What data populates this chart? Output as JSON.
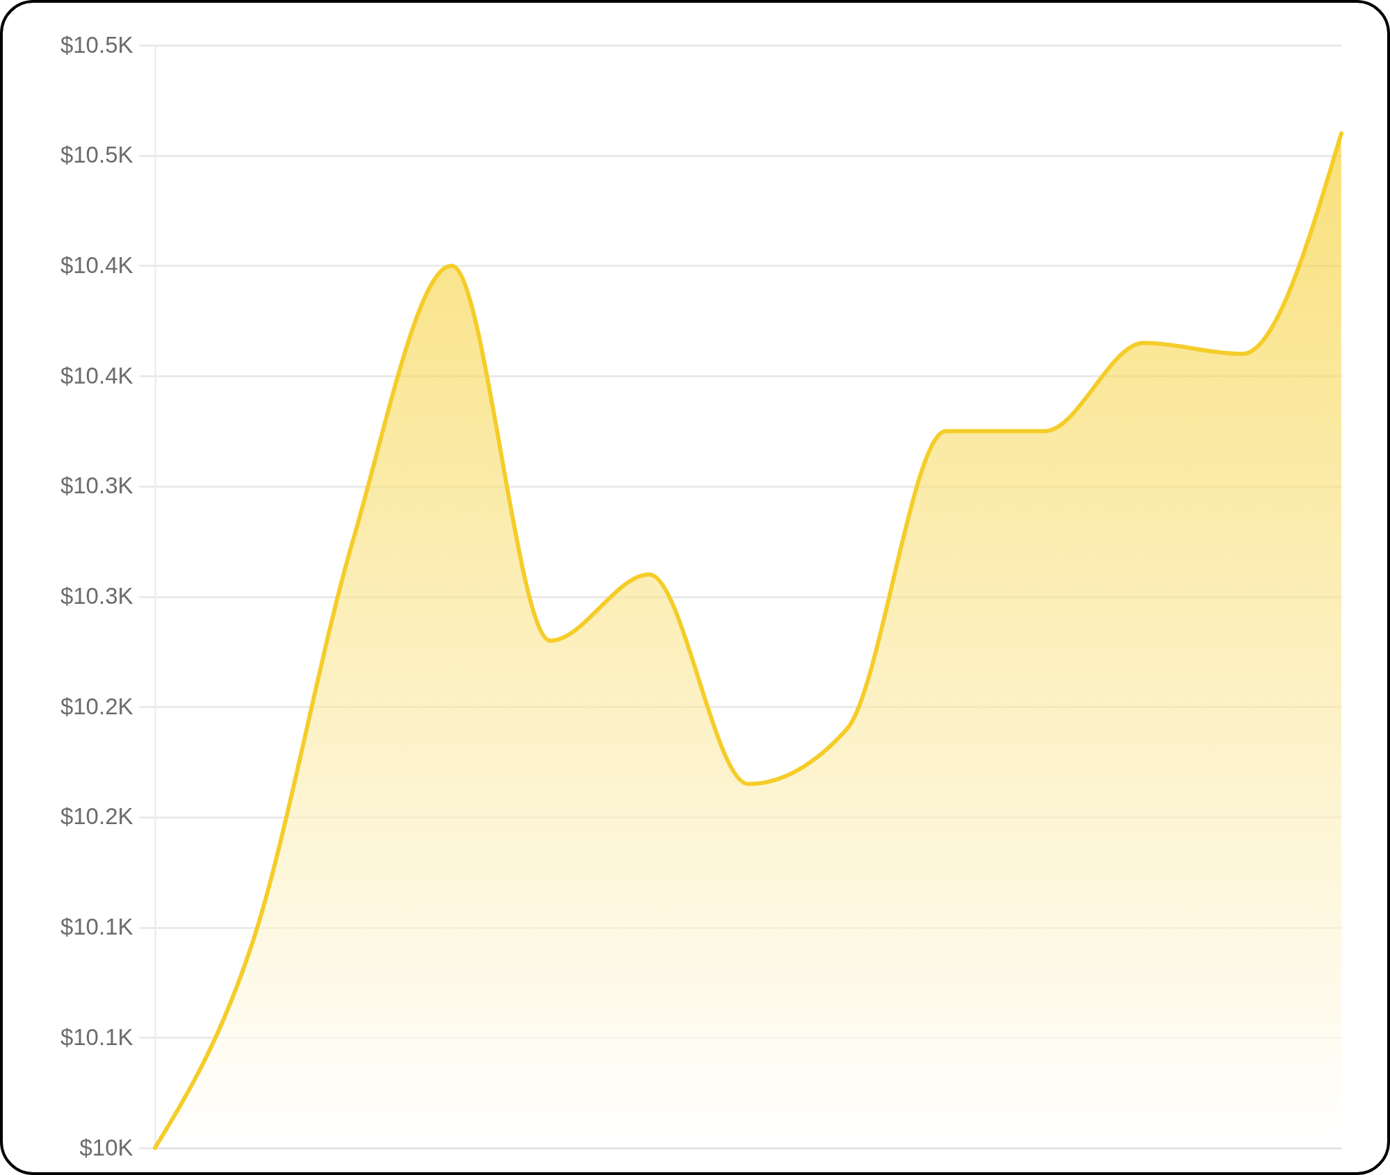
{
  "chart_data": {
    "type": "area",
    "categories": [
      null,
      null,
      null,
      null,
      null,
      null,
      null,
      null,
      null,
      null,
      null,
      null,
      null
    ],
    "values": [
      10000,
      10095,
      10275,
      10400,
      10230,
      10260,
      10165,
      10190,
      10325,
      10325,
      10365,
      10360,
      10460
    ],
    "color": "#f5cd2a",
    "ylim": [
      10000,
      10500
    ],
    "yticks": [
      {
        "value": 10000,
        "label": "$10K"
      },
      {
        "value": 10050,
        "label": "$10.1K"
      },
      {
        "value": 10100,
        "label": "$10.1K"
      },
      {
        "value": 10150,
        "label": "$10.2K"
      },
      {
        "value": 10200,
        "label": "$10.2K"
      },
      {
        "value": 10250,
        "label": "$10.3K"
      },
      {
        "value": 10300,
        "label": "$10.3K"
      },
      {
        "value": 10350,
        "label": "$10.4K"
      },
      {
        "value": 10400,
        "label": "$10.4K"
      },
      {
        "value": 10450,
        "label": "$10.5K"
      },
      {
        "value": 10500,
        "label": "$10.5K"
      }
    ],
    "grid": "y",
    "tick_labels": "y"
  }
}
